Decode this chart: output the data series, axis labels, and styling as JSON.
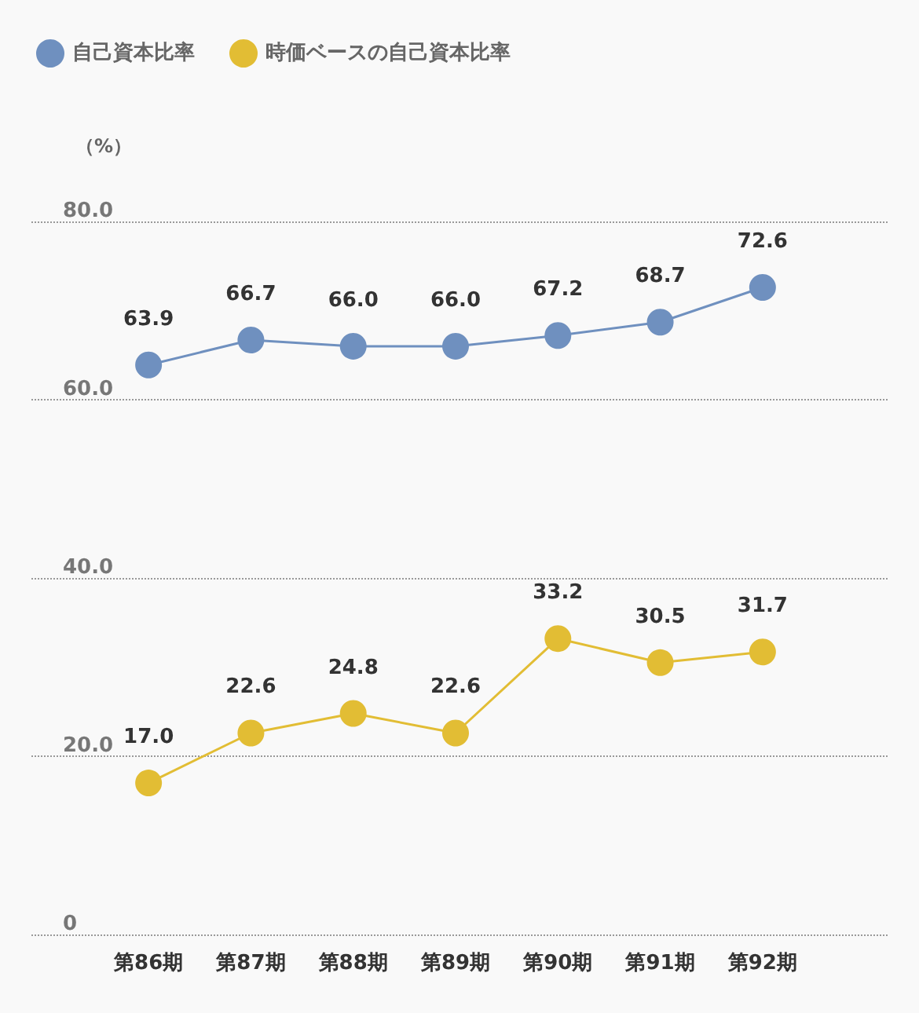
{
  "chart_data": {
    "type": "line",
    "ylabel": "（%）",
    "categories": [
      "第86期",
      "第87期",
      "第88期",
      "第89期",
      "第90期",
      "第91期",
      "第92期"
    ],
    "series": [
      {
        "name": "自己資本比率",
        "color": "#6f90bf",
        "values": [
          63.9,
          66.7,
          66.0,
          66.0,
          67.2,
          68.7,
          72.6
        ],
        "value_labels": [
          "63.9",
          "66.7",
          "66.0",
          "66.0",
          "67.2",
          "68.7",
          "72.6"
        ]
      },
      {
        "name": "時価ベースの自己資本比率",
        "color": "#e2bd34",
        "values": [
          17.0,
          22.6,
          24.8,
          22.6,
          33.2,
          30.5,
          31.7
        ],
        "value_labels": [
          "17.0",
          "22.6",
          "24.8",
          "22.6",
          "33.2",
          "30.5",
          "31.7"
        ]
      }
    ],
    "ylim": [
      0,
      80
    ],
    "yticks": [
      {
        "value": 0,
        "label": "0"
      },
      {
        "value": 20,
        "label": "20.0"
      },
      {
        "value": 40,
        "label": "40.0"
      },
      {
        "value": 60,
        "label": "60.0"
      },
      {
        "value": 80,
        "label": "80.0"
      }
    ],
    "grid": "y",
    "legend": "top left",
    "marker": "circle",
    "line_style": "solid"
  }
}
